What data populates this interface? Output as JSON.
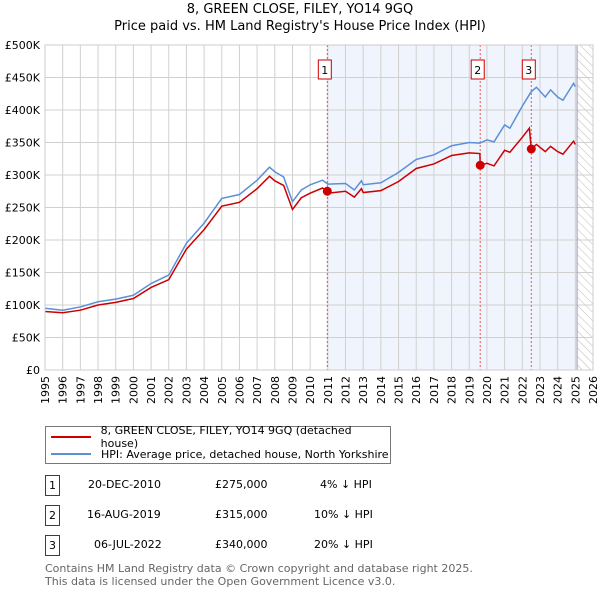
{
  "chart_data": {
    "type": "line",
    "title": "8, GREEN CLOSE, FILEY, YO14 9GQ",
    "subtitle": "Price paid vs. HM Land Registry's House Price Index (HPI)",
    "xlim": [
      1995,
      2026
    ],
    "ylim": [
      0,
      500000
    ],
    "x_ticks": [
      "1995",
      "1996",
      "1997",
      "1998",
      "1999",
      "2000",
      "2001",
      "2002",
      "2003",
      "2004",
      "2005",
      "2006",
      "2007",
      "2008",
      "2009",
      "2010",
      "2011",
      "2012",
      "2013",
      "2014",
      "2015",
      "2016",
      "2017",
      "2018",
      "2019",
      "2020",
      "2021",
      "2022",
      "2023",
      "2024",
      "2025",
      "2026"
    ],
    "y_ticks": [
      {
        "v": 0,
        "label": "£0"
      },
      {
        "v": 50000,
        "label": "£50K"
      },
      {
        "v": 100000,
        "label": "£100K"
      },
      {
        "v": 150000,
        "label": "£150K"
      },
      {
        "v": 200000,
        "label": "£200K"
      },
      {
        "v": 250000,
        "label": "£250K"
      },
      {
        "v": 300000,
        "label": "£300K"
      },
      {
        "v": 350000,
        "label": "£350K"
      },
      {
        "v": 400000,
        "label": "£400K"
      },
      {
        "v": 450000,
        "label": "£450K"
      },
      {
        "v": 500000,
        "label": "£500K"
      }
    ],
    "grid": true,
    "shaded_from": 2010.97,
    "forecast_from": 2025.1,
    "series": [
      {
        "name": "8, GREEN CLOSE, FILEY, YO14 9GQ (detached house)",
        "color": "#cc0000",
        "x": [
          1995,
          1996,
          1997,
          1998,
          1999,
          2000,
          2001,
          2002,
          2003,
          2004,
          2005,
          2006,
          2007,
          2007.7,
          2008,
          2008.5,
          2009,
          2009.5,
          2010,
          2010.7,
          2010.97,
          2011,
          2012,
          2012.5,
          2012.9,
          2013,
          2014,
          2015,
          2016,
          2017,
          2018,
          2019,
          2019.6,
          2019.62,
          2020,
          2020.4,
          2021,
          2021.3,
          2022,
          2022.4,
          2022.51,
          2022.8,
          2023.3,
          2023.6,
          2024,
          2024.3,
          2024.9,
          2025.0
        ],
        "y": [
          90000,
          88000,
          92000,
          100000,
          104000,
          110000,
          127000,
          139000,
          186000,
          216000,
          252000,
          258000,
          279000,
          298000,
          291000,
          284000,
          247000,
          265000,
          272000,
          280000,
          275000,
          272000,
          275000,
          266000,
          279000,
          273000,
          276000,
          290000,
          310000,
          317000,
          330000,
          334000,
          333000,
          315000,
          318000,
          314000,
          338000,
          335000,
          358000,
          372000,
          340000,
          347000,
          336000,
          344000,
          336000,
          332000,
          352000,
          347000
        ]
      },
      {
        "name": "HPI: Average price, detached house, North Yorkshire",
        "color": "#5b8fd6",
        "x": [
          1995,
          1996,
          1997,
          1998,
          1999,
          2000,
          2001,
          2002,
          2003,
          2004,
          2005,
          2006,
          2007,
          2007.7,
          2008,
          2008.5,
          2009,
          2009.5,
          2010,
          2010.7,
          2011,
          2012,
          2012.5,
          2012.9,
          2013,
          2014,
          2015,
          2016,
          2017,
          2018,
          2019,
          2019.6,
          2020,
          2020.4,
          2021,
          2021.3,
          2022,
          2022.5,
          2022.8,
          2023.3,
          2023.6,
          2024,
          2024.3,
          2024.9,
          2025.0
        ],
        "y": [
          95000,
          92000,
          97000,
          105000,
          109000,
          115000,
          133000,
          146000,
          195000,
          226000,
          264000,
          270000,
          292000,
          312000,
          305000,
          297000,
          259000,
          277000,
          285000,
          292000,
          286000,
          287000,
          277000,
          291000,
          285000,
          288000,
          304000,
          324000,
          331000,
          345000,
          350000,
          349000,
          354000,
          351000,
          377000,
          372000,
          406000,
          428000,
          435000,
          420000,
          431000,
          420000,
          415000,
          441000,
          436000
        ]
      }
    ],
    "sales": [
      {
        "id": "1",
        "x": 2010.97,
        "y": 275000,
        "date": "20-DEC-2010",
        "price": "£275,000",
        "diff": "4% ↓ HPI"
      },
      {
        "id": "2",
        "x": 2019.62,
        "y": 315000,
        "date": "16-AUG-2019",
        "price": "£315,000",
        "diff": "10% ↓ HPI"
      },
      {
        "id": "3",
        "x": 2022.51,
        "y": 340000,
        "date": "06-JUL-2022",
        "price": "£340,000",
        "diff": "20% ↓ HPI"
      }
    ],
    "legend_position": "below"
  },
  "footer": {
    "line1": "Contains HM Land Registry data © Crown copyright and database right 2025.",
    "line2": "This data is licensed under the Open Government Licence v3.0."
  }
}
